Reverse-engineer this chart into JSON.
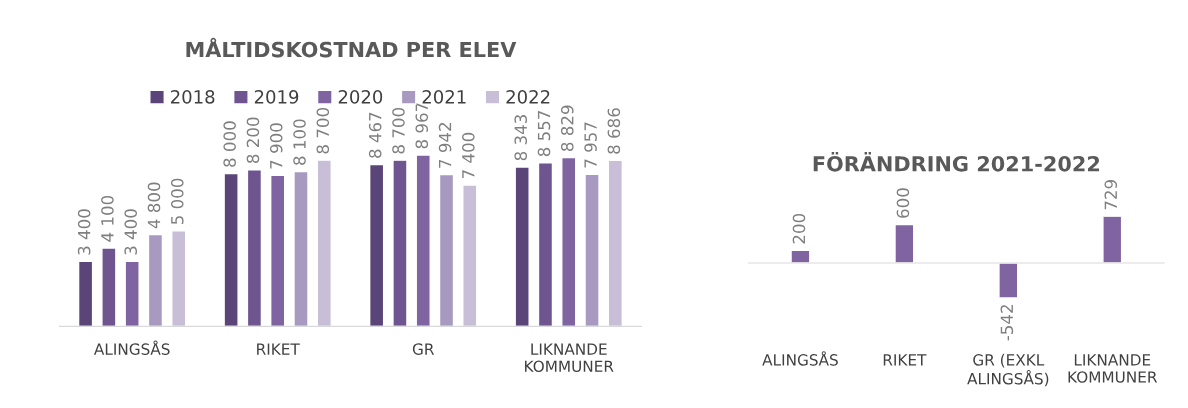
{
  "chart_data": [
    {
      "type": "bar",
      "title": "MÅLTIDSKOSTNAD PER ELEV",
      "categories": [
        "ALINGSÅS",
        "RIKET",
        "GR",
        "LIKNANDE KOMMUNER"
      ],
      "tick_labels": "x",
      "legend": "top",
      "grid": false,
      "series": [
        {
          "name": "2018",
          "color": "#5b4478",
          "values": [
            3400,
            8000,
            8467,
            8343
          ],
          "value_labels": [
            "3 400",
            "8 000",
            "8 467",
            "8 343"
          ]
        },
        {
          "name": "2019",
          "color": "#6e5590",
          "values": [
            4100,
            8200,
            8700,
            8557
          ],
          "value_labels": [
            "4 100",
            "8 200",
            "8 700",
            "8 557"
          ]
        },
        {
          "name": "2020",
          "color": "#8064a2",
          "values": [
            3400,
            7900,
            8967,
            8829
          ],
          "value_labels": [
            "3 400",
            "7 900",
            "8 967",
            "8 829"
          ]
        },
        {
          "name": "2021",
          "color": "#a899c0",
          "values": [
            4800,
            8100,
            7942,
            7957
          ],
          "value_labels": [
            "4 800",
            "8 100",
            "7 942",
            "7 957"
          ]
        },
        {
          "name": "2022",
          "color": "#c8bed8",
          "values": [
            5000,
            8700,
            7400,
            8686
          ],
          "value_labels": [
            "5 000",
            "8 700",
            "7 400",
            "8 686"
          ]
        }
      ]
    },
    {
      "type": "bar",
      "title": "FÖRÄNDRING 2021-2022",
      "categories": [
        "ALINGSÅS",
        "RIKET",
        "GR (EXKL ALINGSÅS)",
        "LIKNANDE KOMMUNER"
      ],
      "tick_labels": "x",
      "grid": false,
      "data_labels": true,
      "series": [
        {
          "color": "#8064a2",
          "values": [
            200,
            600,
            -542,
            729
          ]
        }
      ]
    }
  ]
}
